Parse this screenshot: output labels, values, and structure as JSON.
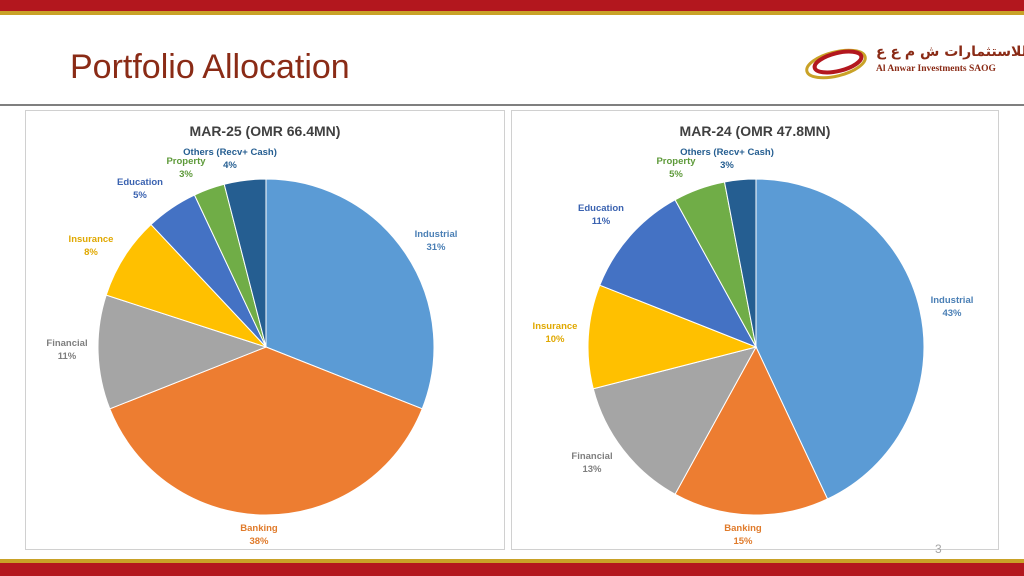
{
  "slide": {
    "title": "Portfolio Allocation",
    "page_number": "3"
  },
  "logo": {
    "arabic": "الأنوار للاستثمارات ش م ع ع",
    "english": "Al Anwar Investments SAOG",
    "colors": {
      "swoosh_red": "#b3171e",
      "swoosh_gold": "#c9a227",
      "text": "#8a2b16"
    }
  },
  "colors": {
    "Industrial": "#5b9bd5",
    "Banking": "#ed7d31",
    "Financial": "#a5a5a5",
    "Insurance": "#ffc000",
    "Education": "#4472c4",
    "Property": "#70ad47",
    "Others (Recv+ Cash)": "#255e91"
  },
  "chart_data": [
    {
      "type": "pie",
      "title": "MAR-25 (OMR 66.4MN)",
      "start_angle_deg": 0,
      "direction": "clockwise",
      "slices": [
        {
          "label": "Industrial",
          "value": 31,
          "display": "31%"
        },
        {
          "label": "Banking",
          "value": 38,
          "display": "38%"
        },
        {
          "label": "Financial",
          "value": 11,
          "display": "11%"
        },
        {
          "label": "Insurance",
          "value": 8,
          "display": "8%"
        },
        {
          "label": "Education",
          "value": 5,
          "display": "5%"
        },
        {
          "label": "Property",
          "value": 3,
          "display": "3%"
        },
        {
          "label": "Others (Recv+ Cash)",
          "value": 4,
          "display": "4%"
        }
      ]
    },
    {
      "type": "pie",
      "title": "MAR-24 (OMR 47.8MN)",
      "start_angle_deg": 0,
      "direction": "clockwise",
      "slices": [
        {
          "label": "Industrial",
          "value": 43,
          "display": "43%"
        },
        {
          "label": "Banking",
          "value": 15,
          "display": "15%"
        },
        {
          "label": "Financial",
          "value": 13,
          "display": "13%"
        },
        {
          "label": "Insurance",
          "value": 10,
          "display": "10%"
        },
        {
          "label": "Education",
          "value": 11,
          "display": "11%"
        },
        {
          "label": "Property",
          "value": 5,
          "display": "5%"
        },
        {
          "label": "Others (Recv+ Cash)",
          "value": 3,
          "display": "3%"
        }
      ]
    }
  ]
}
